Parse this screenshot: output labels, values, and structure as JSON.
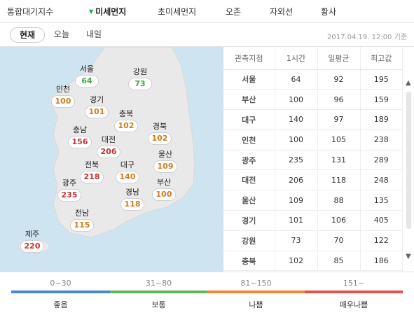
{
  "tabs": [
    {
      "label": "통합대기지수",
      "active": false
    },
    {
      "label": "미세먼지",
      "active": true
    },
    {
      "label": "초미세먼지",
      "active": false
    },
    {
      "label": "오존",
      "active": false
    },
    {
      "label": "자외선",
      "active": false
    },
    {
      "label": "황사",
      "active": false
    }
  ],
  "time_tabs": [
    {
      "label": "현재",
      "active": true
    },
    {
      "label": "오늘",
      "active": false
    },
    {
      "label": "내일",
      "active": false
    }
  ],
  "timestamp": "2017.04.19. 12:00 기준",
  "colors": {
    "good": "#3ba84a",
    "normal": "#3ba84a",
    "bad": "#d47a1e",
    "very_bad": "#c8322f",
    "sea": "#cfe4f1",
    "land": "#e9e9e9"
  },
  "regions": [
    {
      "name": "서울",
      "value": "64",
      "level": "good"
    },
    {
      "name": "강원",
      "value": "73",
      "level": "good"
    },
    {
      "name": "인천",
      "value": "100",
      "level": "bad"
    },
    {
      "name": "경기",
      "value": "101",
      "level": "bad"
    },
    {
      "name": "충북",
      "value": "102",
      "level": "bad"
    },
    {
      "name": "충남",
      "value": "156",
      "level": "very_bad"
    },
    {
      "name": "대전",
      "value": "206",
      "level": "very_bad"
    },
    {
      "name": "경북",
      "value": "102",
      "level": "bad"
    },
    {
      "name": "울산",
      "value": "109",
      "level": "bad"
    },
    {
      "name": "전북",
      "value": "218",
      "level": "very_bad"
    },
    {
      "name": "대구",
      "value": "140",
      "level": "bad"
    },
    {
      "name": "광주",
      "value": "235",
      "level": "very_bad"
    },
    {
      "name": "경남",
      "value": "118",
      "level": "bad"
    },
    {
      "name": "부산",
      "value": "100",
      "level": "bad"
    },
    {
      "name": "전남",
      "value": "115",
      "level": "bad"
    },
    {
      "name": "제주",
      "value": "220",
      "level": "very_bad"
    }
  ],
  "table": {
    "headers": [
      "관측지점",
      "1시간",
      "일평균",
      "최고값"
    ],
    "rows": [
      [
        "서울",
        "64",
        "92",
        "195"
      ],
      [
        "부산",
        "100",
        "96",
        "159"
      ],
      [
        "대구",
        "140",
        "97",
        "189"
      ],
      [
        "인천",
        "100",
        "105",
        "238"
      ],
      [
        "광주",
        "235",
        "131",
        "289"
      ],
      [
        "대전",
        "206",
        "118",
        "248"
      ],
      [
        "울산",
        "109",
        "88",
        "135"
      ],
      [
        "경기",
        "101",
        "106",
        "405"
      ],
      [
        "강원",
        "73",
        "70",
        "122"
      ],
      [
        "충북",
        "102",
        "85",
        "186"
      ]
    ]
  },
  "legend": [
    {
      "range": "0~30",
      "label": "좋음",
      "color": "#4a86d8"
    },
    {
      "range": "31~80",
      "label": "보통",
      "color": "#5cb85c"
    },
    {
      "range": "81~150",
      "label": "나쁨",
      "color": "#f0883a"
    },
    {
      "range": "151~",
      "label": "매우나쁨",
      "color": "#e5504a"
    }
  ]
}
